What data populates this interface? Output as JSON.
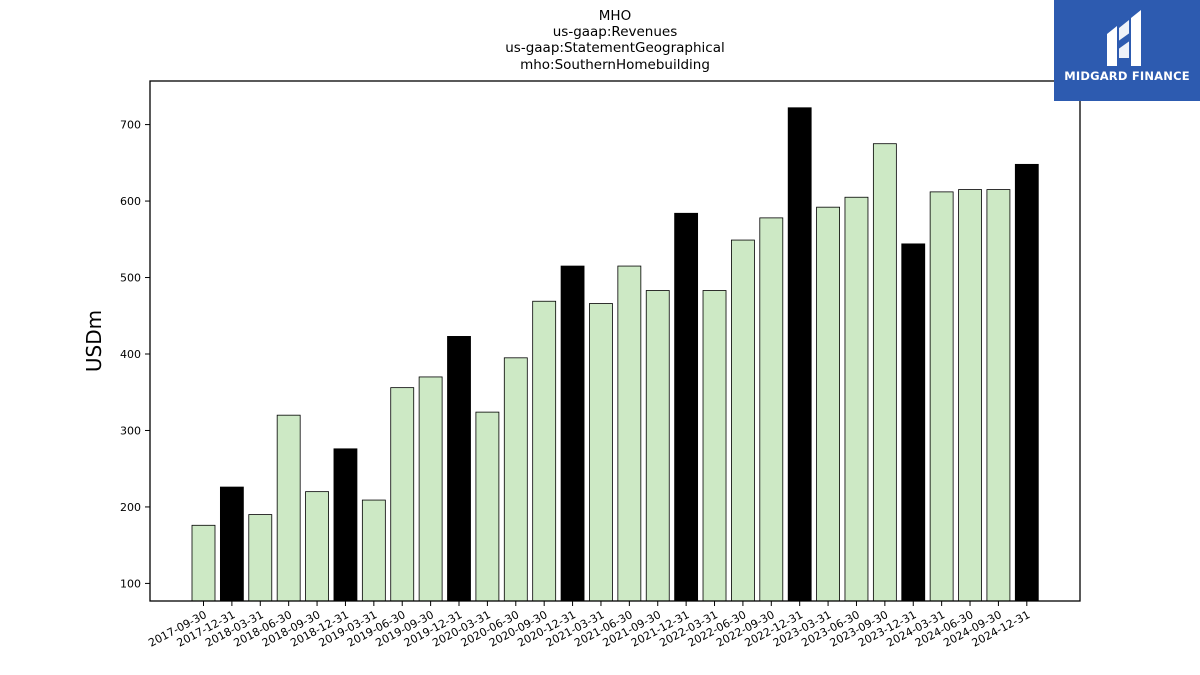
{
  "brand": {
    "name": "MIDGARD FINANCE",
    "logo_icon": "midgard-m-logo-icon",
    "background": "#2d5bb0"
  },
  "chart_data": {
    "type": "bar",
    "title_lines": [
      "MHO",
      "us-gaap:Revenues",
      "us-gaap:StatementGeographical",
      "mho:SouthernHomebuilding"
    ],
    "xlabel": "",
    "ylabel": "USDm",
    "ylim": [
      77,
      757
    ],
    "yticks": [
      100,
      200,
      300,
      400,
      500,
      600,
      700
    ],
    "categories": [
      "2017-09-30",
      "2017-12-31",
      "2018-03-31",
      "2018-06-30",
      "2018-09-30",
      "2018-12-31",
      "2019-03-31",
      "2019-06-30",
      "2019-09-30",
      "2019-12-31",
      "2020-03-31",
      "2020-06-30",
      "2020-09-30",
      "2020-12-31",
      "2021-03-31",
      "2021-06-30",
      "2021-09-30",
      "2021-12-31",
      "2022-03-31",
      "2022-06-30",
      "2022-09-30",
      "2022-12-31",
      "2023-03-31",
      "2023-06-30",
      "2023-09-30",
      "2023-12-31",
      "2024-03-31",
      "2024-06-30",
      "2024-09-30",
      "2024-12-31"
    ],
    "values": [
      176,
      226,
      190,
      320,
      220,
      276,
      209,
      356,
      370,
      423,
      324,
      395,
      469,
      515,
      466,
      515,
      483,
      584,
      483,
      549,
      578,
      722,
      592,
      605,
      675,
      544,
      612,
      615,
      615,
      648
    ],
    "colors": {
      "quarter": "#cde9c5",
      "year_end": "#000000",
      "edge": "#000000"
    },
    "highlight_rule": "year-end (12-31) bars drawn in black"
  }
}
